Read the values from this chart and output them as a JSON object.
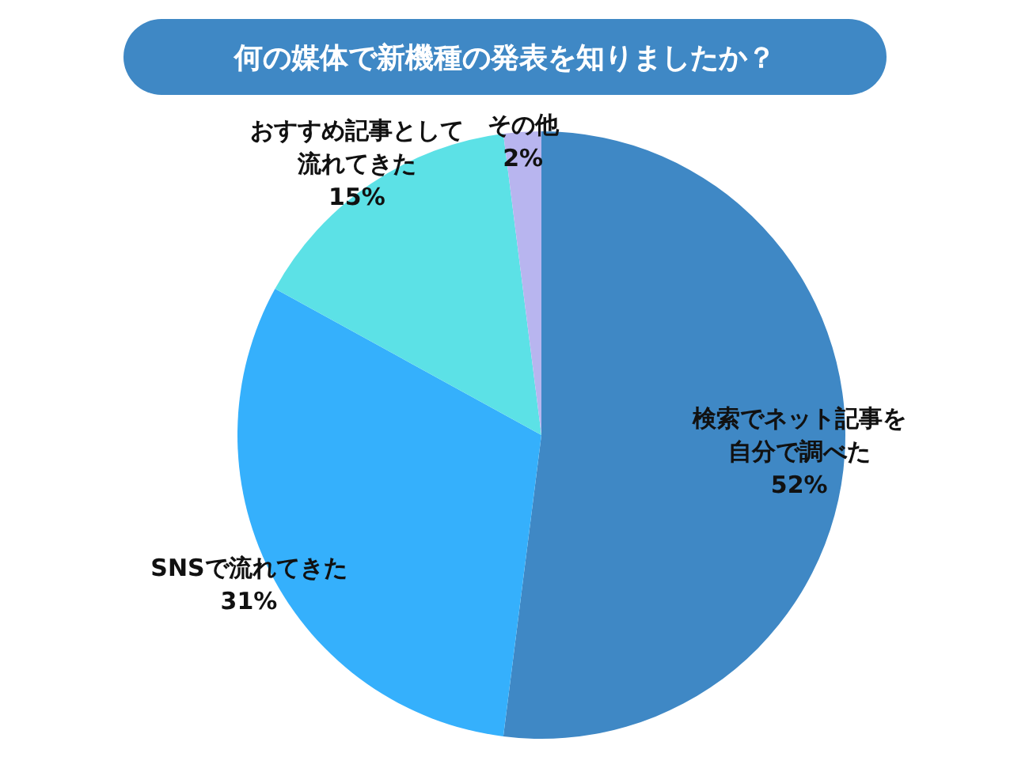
{
  "chart_data": {
    "type": "pie",
    "title": "何の媒体で新機種の発表を知りましたか？",
    "categories": [
      "検索でネット記事を自分で調べた",
      "SNSで流れてきた",
      "おすすめ記事として流れてきた",
      "その他"
    ],
    "values": [
      52,
      31,
      15,
      2
    ],
    "colors": [
      "#3f88c5",
      "#35b0fc",
      "#5ce1e6",
      "#b8b5ef"
    ],
    "value_labels": [
      "52%",
      "31%",
      "15%",
      "2%"
    ]
  }
}
